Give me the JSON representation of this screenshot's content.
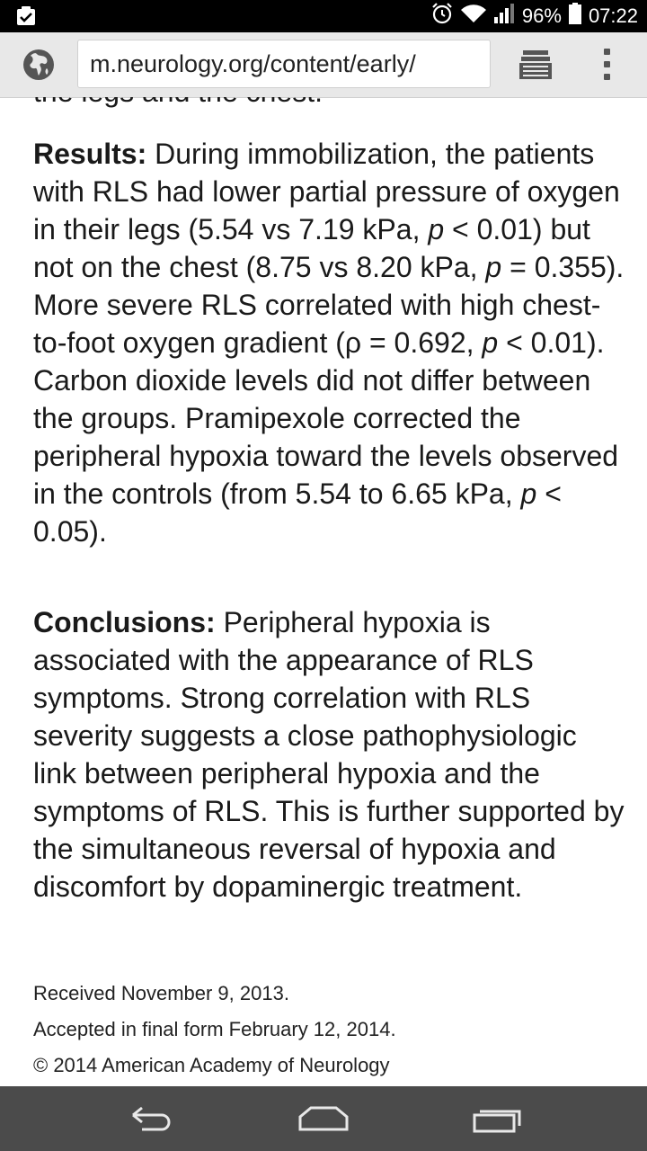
{
  "status_bar": {
    "battery": "96%",
    "time": "07:22",
    "icons": [
      "notification-check-icon",
      "alarm-icon",
      "wifi-icon",
      "signal-icon",
      "battery-icon"
    ]
  },
  "browser": {
    "url": "m.neurology.org/content/early/",
    "icons": [
      "globe-icon",
      "tabs-icon",
      "overflow-menu-icon"
    ]
  },
  "article": {
    "cutoff_text": "the legs and the chest.",
    "results": {
      "heading": "Results:",
      "t1": " During immobilization, the patients with RLS had lower partial pressure of oxygen in their legs (5.54 vs 7.19 kPa, ",
      "p1": "p",
      "t2": " < 0.01) but not on the chest (8.75 vs 8.20 kPa, ",
      "p2": "p",
      "t3": " = 0.355). More severe RLS correlated with high chest-to-foot oxygen gradient (ρ = 0.692, ",
      "p3": "p",
      "t4": " < 0.01). Carbon dioxide levels did not differ between the groups. Pramipexole corrected the peripheral hypoxia toward the levels observed in the controls (from 5.54 to 6.65 kPa, ",
      "p4": "p",
      "t5": " < 0.05)."
    },
    "conclusions": {
      "heading": "Conclusions:",
      "text": " Peripheral hypoxia is associated with the appearance of RLS symptoms. Strong correlation with RLS severity suggests a close pathophysiologic link between peripheral hypoxia and the symptoms of RLS. This is further supported by the simultaneous reversal of hypoxia and discomfort by dopaminergic treatment."
    },
    "received": "Received November 9, 2013.",
    "accepted": "Accepted in final form February 12, 2014.",
    "copyright": "© 2014 American Academy of Neurology"
  },
  "nav_bar": {
    "icons": [
      "back-icon",
      "home-icon",
      "recent-apps-icon"
    ]
  }
}
